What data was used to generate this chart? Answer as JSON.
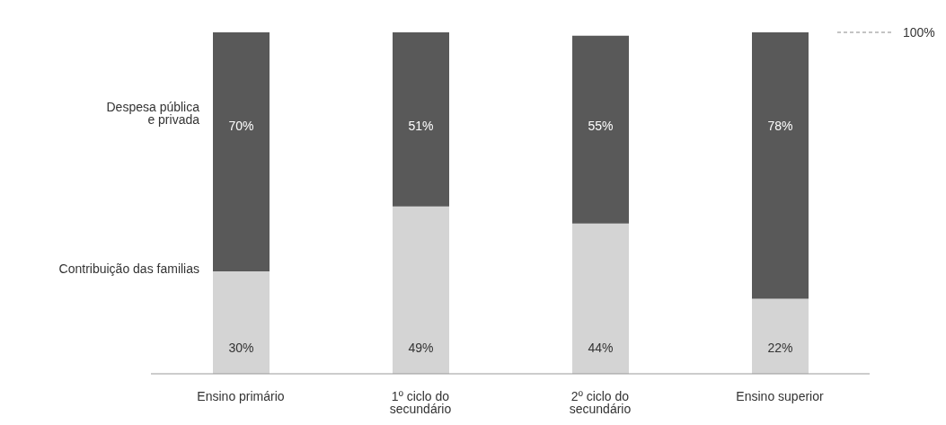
{
  "chart_data": {
    "type": "bar",
    "stacked": true,
    "categories": [
      "Ensino primário",
      "1º ciclo do secundário",
      "2º ciclo do secundário",
      "Ensino superior"
    ],
    "series": [
      {
        "name": "Contribuição das familias",
        "color": "#d4d4d4",
        "values": [
          30,
          49,
          44,
          22
        ],
        "value_labels": [
          "30%",
          "49%",
          "44%",
          "22%"
        ]
      },
      {
        "name": "Despesa pública e privada",
        "color": "#595959",
        "values": [
          70,
          51,
          55,
          78
        ],
        "value_labels": [
          "70%",
          "51%",
          "55%",
          "78%"
        ]
      }
    ],
    "legend": false,
    "ref_lines": [
      {
        "axis": "y",
        "value": 100,
        "label": "100%",
        "line_style": "dashed",
        "color": "#888888"
      }
    ]
  }
}
